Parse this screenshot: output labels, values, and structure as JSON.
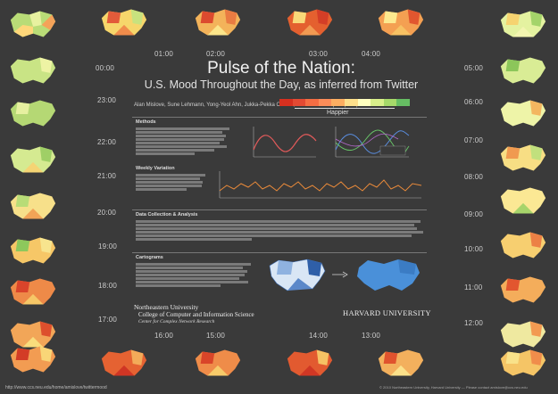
{
  "title": "Pulse of the Nation:",
  "subtitle": "U.S. Mood Throughout the Day, as inferred from Twitter",
  "authors": "Alan Mislove, Sune Lehmann, Yong-Yeol Ahn, Jukka-Pekka Onnela, J. Niels Rosenquist (EST)",
  "legend": {
    "label": "Happier",
    "colors": [
      "#d7301f",
      "#e34a33",
      "#f46d43",
      "#fc8d59",
      "#fdae61",
      "#fee08b",
      "#ffffbf",
      "#d9ef8b",
      "#a6d96a",
      "#66bd63"
    ]
  },
  "hours": {
    "h0100": "01:00",
    "h0200": "02:00",
    "h0300": "03:00",
    "h0400": "04:00",
    "h0500": "05:00",
    "h0600": "06:00",
    "h0700": "07:00",
    "h0800": "08:00",
    "h0900": "09:00",
    "h1000": "10:00",
    "h1100": "11:00",
    "h1200": "12:00",
    "h1300": "13:00",
    "h1400": "14:00",
    "h1500": "15:00",
    "h1600": "16:00",
    "h1700": "17:00",
    "h1800": "18:00",
    "h1900": "19:00",
    "h2000": "20:00",
    "h2100": "21:00",
    "h2200": "22:00",
    "h2300": "23:00",
    "h0000": "00:00"
  },
  "sections": {
    "methods": "Methods",
    "weekly": "Weekly Variation",
    "data": "Data Collection & Analysis",
    "cartograms": "Cartograms"
  },
  "affiliations": {
    "university": "Northeastern University",
    "college": "College of Computer and Information Science",
    "lab": "Center for Complex Network Research",
    "harvard": "HARVARD UNIVERSITY"
  },
  "footer": {
    "url": "http://www.ccs.neu.edu/home/amislove/twittermood",
    "credits": "© 2010 Northeastern University, Harvard University — Please contact amislove@ccs.neu.edu"
  }
}
